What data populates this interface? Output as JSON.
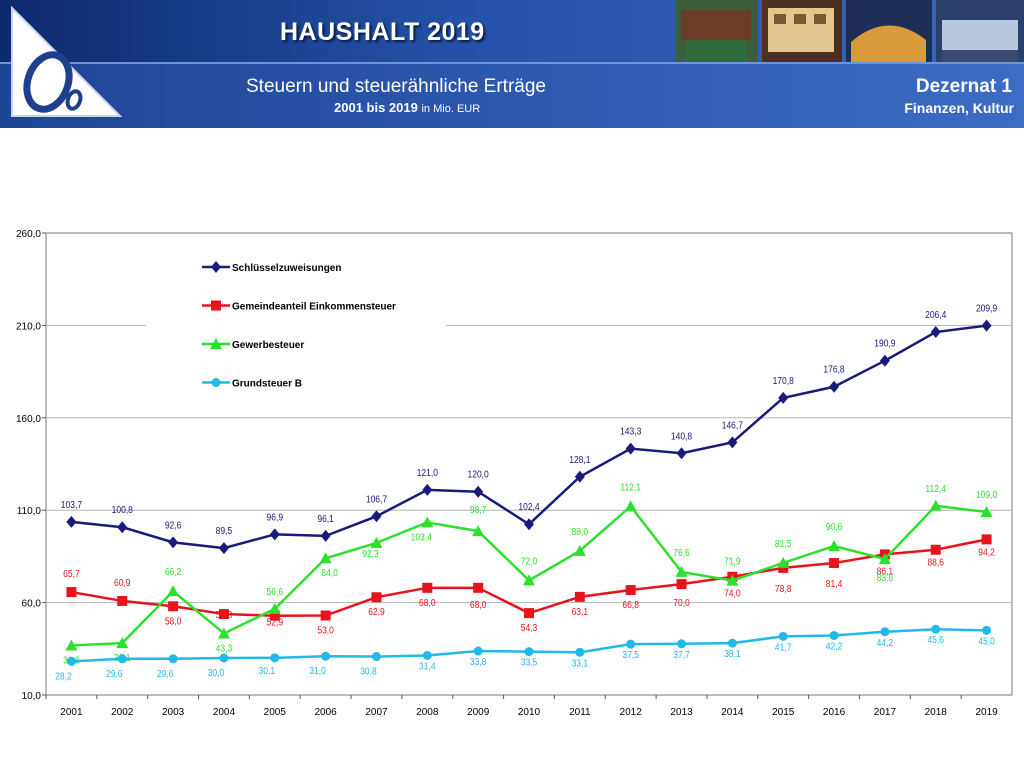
{
  "header": {
    "title": "HAUSHALT 2019",
    "subtitle": "Steuern und steuerähnliche Erträge",
    "years_range": "2001 bis 2019",
    "unit": "in Mio. EUR",
    "department": "Dezernat 1",
    "department_sub": "Finanzen, Kultur",
    "accent_color": "#2452a8"
  },
  "chart_data": {
    "type": "line",
    "title": "",
    "xlabel": "",
    "ylabel": "",
    "ylim": [
      10,
      260
    ],
    "yticks": [
      "10,0",
      "60,0",
      "110,0",
      "160,0",
      "210,0",
      "260,0"
    ],
    "grid": true,
    "legend_position": "top-left",
    "categories": [
      "2001",
      "2002",
      "2003",
      "2004",
      "2005",
      "2006",
      "2007",
      "2008",
      "2009",
      "2010",
      "2011",
      "2012",
      "2013",
      "2014",
      "2015",
      "2016",
      "2017",
      "2018",
      "2019"
    ],
    "series": [
      {
        "name": "Schlüsselzuweisungen",
        "color": "#1a1a7a",
        "marker": "diamond",
        "values": [
          103.7,
          100.8,
          92.6,
          89.5,
          96.9,
          96.1,
          106.7,
          121.0,
          120.0,
          102.4,
          128.1,
          143.3,
          140.8,
          146.7,
          170.8,
          176.8,
          190.9,
          206.4,
          209.9
        ],
        "labels": [
          "103,7",
          "100,8",
          "92,6",
          "89,5",
          "96,9",
          "96,1",
          "106,7",
          "121,0",
          "120,0",
          "102,4",
          "128,1",
          "143,3",
          "140,8",
          "146,7",
          "170,8",
          "176,8",
          "190,9",
          "206,4",
          "209,9"
        ]
      },
      {
        "name": "Gemeindeanteil Einkommensteuer",
        "color": "#e8141c",
        "marker": "square",
        "values": [
          65.7,
          60.9,
          58.0,
          53.8,
          52.9,
          53.0,
          62.9,
          68.0,
          68.0,
          54.3,
          63.1,
          66.8,
          70.0,
          74.0,
          78.8,
          81.4,
          86.1,
          88.6,
          94.2
        ],
        "labels": [
          "65,7",
          "60,9",
          "58,0",
          "53,8",
          "52,9",
          "53,0",
          "62,9",
          "68,0",
          "68,0",
          "54,3",
          "63,1",
          "66,8",
          "70,0",
          "74,0",
          "78,8",
          "81,4",
          "86,1",
          "88,6",
          "94,2"
        ]
      },
      {
        "name": "Gewerbesteuer",
        "color": "#2ee02e",
        "marker": "triangle",
        "values": [
          36.8,
          38.1,
          66.2,
          43.3,
          56.6,
          84.0,
          92.3,
          103.4,
          98.7,
          72.0,
          88.0,
          112.1,
          76.6,
          71.9,
          81.5,
          90.6,
          83.6,
          112.4,
          109.0
        ],
        "labels": [
          "36,8",
          "38,1",
          "66,2",
          "43,3",
          "56,6",
          "84,0",
          "92,3",
          "103,4",
          "98,7",
          "72,0",
          "88,0",
          "112,1",
          "76,6",
          "71,9",
          "81,5",
          "90,6",
          "83,6",
          "112,4",
          "109,0"
        ]
      },
      {
        "name": "Grundsteuer B",
        "color": "#22b8e8",
        "marker": "circle",
        "values": [
          28.2,
          29.6,
          29.6,
          30.0,
          30.1,
          31.0,
          30.8,
          31.4,
          33.8,
          33.5,
          33.1,
          37.5,
          37.7,
          38.1,
          41.7,
          42.2,
          44.2,
          45.6,
          45.0
        ],
        "labels": [
          "28,2",
          "29,6",
          "29,6",
          "30,0",
          "30,1",
          "31,0",
          "30,8",
          "31,4",
          "33,8",
          "33,5",
          "33,1",
          "37,5",
          "37,7",
          "38,1",
          "41,7",
          "42,2",
          "44,2",
          "45,6",
          "45,0"
        ]
      }
    ]
  }
}
